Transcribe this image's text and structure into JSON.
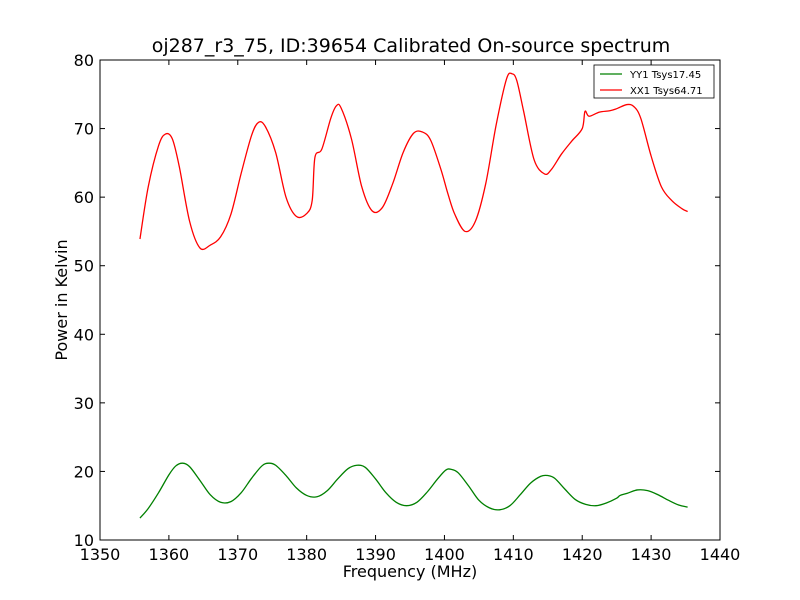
{
  "chart_data": {
    "type": "line",
    "title": "oj287_r3_75, ID:39654 Calibrated On-source spectrum",
    "xlabel": "Frequency (MHz)",
    "ylabel": "Power in Kelvin",
    "xlim": [
      1350,
      1440
    ],
    "ylim": [
      10,
      80
    ],
    "xticks": [
      1350,
      1360,
      1370,
      1380,
      1390,
      1400,
      1410,
      1420,
      1430,
      1440
    ],
    "yticks": [
      10,
      20,
      30,
      40,
      50,
      60,
      70,
      80
    ],
    "grid": false,
    "legend_position": "top-right",
    "series": [
      {
        "name": "YY1 Tsys17.45",
        "color": "#008000",
        "x": [
          1355.8,
          1357.0,
          1358.5,
          1360.0,
          1361.0,
          1362.0,
          1363.0,
          1364.5,
          1366.0,
          1367.5,
          1369.0,
          1370.5,
          1372.0,
          1373.5,
          1374.5,
          1375.5,
          1377.0,
          1378.5,
          1380.0,
          1381.5,
          1383.0,
          1384.5,
          1386.0,
          1387.3,
          1388.5,
          1390.0,
          1391.5,
          1393.0,
          1394.5,
          1396.0,
          1397.5,
          1399.0,
          1400.2,
          1401.0,
          1402.0,
          1403.5,
          1405.0,
          1406.5,
          1408.0,
          1409.5,
          1411.0,
          1412.5,
          1414.0,
          1415.0,
          1416.0,
          1417.5,
          1419.0,
          1420.5,
          1422.0,
          1423.5,
          1425.0,
          1425.5,
          1426.5,
          1428.0,
          1429.5,
          1431.0,
          1432.5,
          1434.0,
          1435.3
        ],
        "values": [
          13.2,
          14.6,
          16.9,
          19.5,
          20.8,
          21.2,
          20.7,
          18.7,
          16.6,
          15.5,
          15.6,
          16.9,
          19.0,
          20.8,
          21.2,
          20.9,
          19.4,
          17.6,
          16.5,
          16.3,
          17.2,
          18.9,
          20.4,
          20.9,
          20.6,
          18.9,
          16.9,
          15.5,
          15.0,
          15.5,
          17.0,
          18.9,
          20.2,
          20.3,
          19.8,
          17.9,
          15.8,
          14.7,
          14.4,
          15.0,
          16.6,
          18.3,
          19.3,
          19.4,
          19.0,
          17.4,
          15.9,
          15.2,
          15.0,
          15.4,
          16.1,
          16.5,
          16.8,
          17.3,
          17.2,
          16.6,
          15.8,
          15.1,
          14.8
        ]
      },
      {
        "name": "XX1 Tsys64.71",
        "color": "#ff0000",
        "x": [
          1355.8,
          1357.0,
          1358.5,
          1359.5,
          1360.5,
          1361.5,
          1363.0,
          1364.5,
          1366.0,
          1367.5,
          1369.0,
          1370.5,
          1372.0,
          1373.0,
          1374.0,
          1375.5,
          1377.0,
          1378.5,
          1380.0,
          1380.8,
          1381.2,
          1382.2,
          1383.5,
          1384.3,
          1385.0,
          1386.5,
          1388.0,
          1389.5,
          1391.0,
          1392.5,
          1394.0,
          1395.5,
          1396.8,
          1398.0,
          1399.5,
          1400.5,
          1401.5,
          1403.0,
          1404.5,
          1406.0,
          1407.5,
          1409.0,
          1409.8,
          1410.5,
          1411.5,
          1413.0,
          1414.5,
          1415.5,
          1417.0,
          1418.5,
          1420.0,
          1420.4,
          1421.0,
          1422.5,
          1424.0,
          1425.0,
          1426.5,
          1427.5,
          1428.5,
          1430.0,
          1431.5,
          1433.0,
          1434.5,
          1435.3
        ],
        "values": [
          53.9,
          61.5,
          67.5,
          69.2,
          68.5,
          64.5,
          56.5,
          52.6,
          53.0,
          54.2,
          57.5,
          63.5,
          69.0,
          70.9,
          70.3,
          66.5,
          60.0,
          57.2,
          57.6,
          59.5,
          65.8,
          67.0,
          71.5,
          73.3,
          73.0,
          68.5,
          61.5,
          58.0,
          58.5,
          62.0,
          66.5,
          69.3,
          69.5,
          68.3,
          64.0,
          60.5,
          57.5,
          55.0,
          56.5,
          62.0,
          70.5,
          77.2,
          78.0,
          77.0,
          72.5,
          65.5,
          63.4,
          64.0,
          66.3,
          68.2,
          70.0,
          72.5,
          71.8,
          72.4,
          72.6,
          72.9,
          73.5,
          73.2,
          71.5,
          66.0,
          61.5,
          59.5,
          58.3,
          57.9
        ]
      }
    ]
  }
}
